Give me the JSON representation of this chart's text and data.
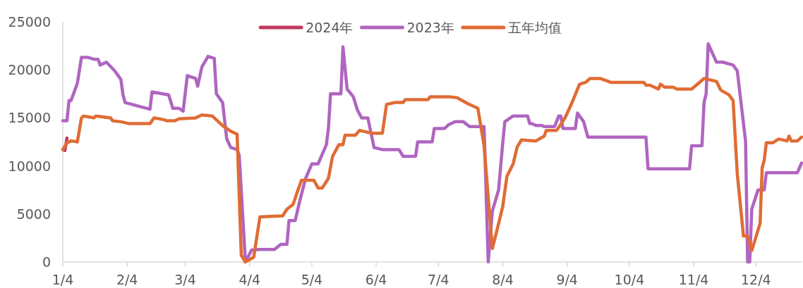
{
  "chart_data": {
    "type": "line",
    "legend": "top",
    "grid": false,
    "line_style": "solid",
    "marker": "none",
    "xlim": [
      "--01-04",
      "--12-26"
    ],
    "ylim": [
      0,
      25000
    ],
    "yticks": [
      0,
      5000,
      10000,
      15000,
      20000,
      25000
    ],
    "xticks": [
      {
        "value": "--01-04",
        "label": "1/4"
      },
      {
        "value": "--02-04",
        "label": "2/4"
      },
      {
        "value": "--03-04",
        "label": "3/4"
      },
      {
        "value": "--04-04",
        "label": "4/4"
      },
      {
        "value": "--05-04",
        "label": "5/4"
      },
      {
        "value": "--06-04",
        "label": "6/4"
      },
      {
        "value": "--07-04",
        "label": "7/4"
      },
      {
        "value": "--08-04",
        "label": "8/4"
      },
      {
        "value": "--09-04",
        "label": "9/4"
      },
      {
        "value": "--10-04",
        "label": "10/4"
      },
      {
        "value": "--11-04",
        "label": "11/4"
      },
      {
        "value": "--12-04",
        "label": "12/4"
      }
    ],
    "series": [
      {
        "name": "2024年",
        "color": "#c0395f",
        "x": [
          "--01-04",
          "--01-05",
          "--01-06"
        ],
        "values": [
          11700,
          11600,
          12900
        ]
      },
      {
        "name": "2023年",
        "color": "#b065c0",
        "x": [
          "--01-04",
          "--01-06",
          "--01-07",
          "--01-08",
          "--01-11",
          "--01-13",
          "--01-16",
          "--01-19",
          "--01-21",
          "--01-22",
          "--01-25",
          "--01-29",
          "--02-01",
          "--02-02",
          "--02-03",
          "--02-15",
          "--02-16",
          "--02-24",
          "--02-26",
          "--03-01",
          "--03-03",
          "--03-05",
          "--03-09",
          "--03-10",
          "--03-12",
          "--03-15",
          "--03-18",
          "--03-19",
          "--03-22",
          "--03-24",
          "--03-26",
          "--03-29",
          "--03-30",
          "--04-02",
          "--04-05",
          "--04-09",
          "--04-16",
          "--04-19",
          "--04-22",
          "--04-23",
          "--04-26",
          "--04-28",
          "--05-01",
          "--05-04",
          "--05-07",
          "--05-11",
          "--05-12",
          "--05-13",
          "--05-18",
          "--05-19",
          "--05-21",
          "--05-24",
          "--05-26",
          "--05-28",
          "--05-31",
          "--06-03",
          "--06-07",
          "--06-15",
          "--06-17",
          "--06-23",
          "--06-24",
          "--07-01",
          "--07-02",
          "--07-07",
          "--07-09",
          "--07-12",
          "--07-16",
          "--07-19",
          "--07-26",
          "--07-28",
          "--07-30",
          "--08-02",
          "--08-04",
          "--08-05",
          "--08-09",
          "--08-16",
          "--08-17",
          "--08-18",
          "--08-20",
          "--08-23",
          "--08-24",
          "--08-29",
          "--08-31",
          "--09-01",
          "--09-02",
          "--09-08",
          "--09-09",
          "--09-12",
          "--09-14",
          "--10-12",
          "--10-13",
          "--11-02",
          "--11-03",
          "--11-08",
          "--11-09",
          "--11-10",
          "--11-11",
          "--11-15",
          "--11-18",
          "--11-23",
          "--11-25",
          "--11-29",
          "--11-30",
          "--12-01",
          "--12-02",
          "--12-05",
          "--12-08",
          "--12-09",
          "--12-24",
          "--12-26"
        ],
        "values": [
          14700,
          14700,
          16800,
          16800,
          18600,
          21300,
          21300,
          21100,
          21100,
          20500,
          20800,
          19900,
          19000,
          17400,
          16600,
          15900,
          17700,
          17400,
          16000,
          16000,
          15700,
          19400,
          19100,
          18300,
          20300,
          21400,
          21200,
          17500,
          16600,
          12800,
          11900,
          11700,
          11100,
          0,
          1250,
          1300,
          1300,
          1830,
          1830,
          4300,
          4300,
          6200,
          8700,
          10200,
          10200,
          12200,
          13900,
          17500,
          17500,
          22400,
          18000,
          17200,
          15800,
          15000,
          15000,
          11900,
          11700,
          11700,
          11000,
          11000,
          12500,
          12500,
          13900,
          13900,
          14300,
          14600,
          14600,
          14100,
          14100,
          0,
          5300,
          7500,
          12400,
          14600,
          15200,
          15200,
          14400,
          14400,
          14200,
          14200,
          14100,
          14100,
          15200,
          15200,
          13900,
          13900,
          15500,
          14600,
          13000,
          13000,
          9700,
          9700,
          12100,
          12100,
          16600,
          17500,
          22700,
          20800,
          20800,
          20500,
          19900,
          12600,
          0,
          0,
          5500,
          7500,
          7500,
          9300,
          9300,
          10300
        ]
      },
      {
        "name": "五年均值",
        "color": "#e06c35",
        "x": [
          "--01-04",
          "--01-06",
          "--01-08",
          "--01-11",
          "--01-13",
          "--01-14",
          "--01-19",
          "--01-20",
          "--01-27",
          "--01-28",
          "--02-01",
          "--02-05",
          "--02-15",
          "--02-17",
          "--02-22",
          "--02-23",
          "--02-27",
          "--03-01",
          "--03-09",
          "--03-12",
          "--03-17",
          "--03-19",
          "--03-22",
          "--03-24",
          "--03-26",
          "--03-29",
          "--03-31",
          "--04-02",
          "--04-06",
          "--04-09",
          "--04-20",
          "--04-22",
          "--04-25",
          "--04-27",
          "--04-29",
          "--05-05",
          "--05-07",
          "--05-09",
          "--05-12",
          "--05-14",
          "--05-17",
          "--05-19",
          "--05-20",
          "--05-25",
          "--05-27",
          "--06-02",
          "--06-07",
          "--06-09",
          "--06-13",
          "--06-17",
          "--06-18",
          "--06-29",
          "--06-30",
          "--07-09",
          "--07-13",
          "--07-18",
          "--07-23",
          "--07-26",
          "--07-30",
          "--08-02",
          "--08-04",
          "--08-06",
          "--08-09",
          "--08-11",
          "--08-13",
          "--08-20",
          "--08-24",
          "--08-25",
          "--08-30",
          "--09-03",
          "--09-06",
          "--09-10",
          "--09-13",
          "--09-15",
          "--09-20",
          "--09-25",
          "--09-29",
          "--10-11",
          "--10-12",
          "--10-14",
          "--10-18",
          "--10-19",
          "--10-21",
          "--10-25",
          "--10-27",
          "--11-03",
          "--11-09",
          "--11-15",
          "--11-17",
          "--11-21",
          "--11-23",
          "--11-25",
          "--11-28",
          "--11-30",
          "--12-02",
          "--12-06",
          "--12-07",
          "--12-08",
          "--12-09",
          "--12-12",
          "--12-15",
          "--12-19",
          "--12-20",
          "--12-21",
          "--12-24",
          "--12-26"
        ],
        "values": [
          11700,
          12400,
          12600,
          12500,
          15000,
          15200,
          15000,
          15200,
          15000,
          14700,
          14600,
          14400,
          14400,
          15000,
          14800,
          14700,
          14700,
          14900,
          15000,
          15300,
          15200,
          14800,
          14200,
          13900,
          13600,
          13300,
          700,
          0,
          500,
          4700,
          4800,
          5500,
          6000,
          7300,
          8500,
          8500,
          7700,
          7700,
          8700,
          11000,
          12200,
          12200,
          13200,
          13200,
          13700,
          13400,
          13400,
          16400,
          16600,
          16600,
          16900,
          16900,
          17200,
          17200,
          17100,
          16500,
          16000,
          12100,
          1400,
          4000,
          5800,
          8900,
          10200,
          12000,
          12700,
          12600,
          13100,
          13700,
          13700,
          15000,
          16400,
          18500,
          18700,
          19100,
          19100,
          18700,
          18700,
          18700,
          18400,
          18400,
          18000,
          18500,
          18200,
          18200,
          18000,
          18000,
          19100,
          18800,
          17900,
          17400,
          16800,
          9200,
          2700,
          2700,
          1200,
          4000,
          9800,
          10600,
          12400,
          12400,
          12800,
          12600,
          13100,
          12600,
          12600,
          13000
        ]
      }
    ]
  }
}
